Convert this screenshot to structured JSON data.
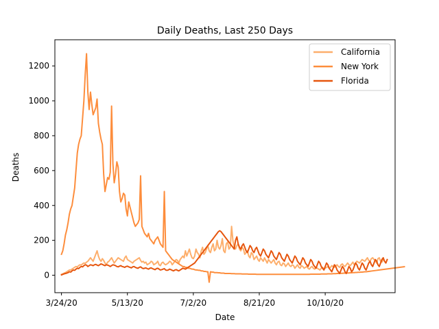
{
  "chart_data": {
    "type": "line",
    "title": "Daily Deaths, Last 250 Days",
    "xlabel": "Date",
    "ylabel": "Deaths",
    "x_start": "3/24/20",
    "x_end": "11/28/20",
    "xlim": [
      "3/19/20",
      "12/2/20"
    ],
    "ylim": [
      -100,
      1350
    ],
    "x_ticks": [
      "3/24/20",
      "5/13/20",
      "7/2/20",
      "8/21/20",
      "10/10/20"
    ],
    "y_ticks": [
      0,
      200,
      400,
      600,
      800,
      1000,
      1200
    ],
    "legend_position": "top-right",
    "grid": false,
    "series": [
      {
        "name": "California",
        "color": "#fdae6b",
        "values": [
          5,
          8,
          12,
          15,
          20,
          25,
          30,
          30,
          35,
          40,
          45,
          50,
          48,
          55,
          60,
          58,
          65,
          70,
          68,
          75,
          80,
          90,
          100,
          90,
          80,
          100,
          120,
          140,
          110,
          90,
          80,
          95,
          85,
          70,
          60,
          75,
          80,
          90,
          100,
          85,
          70,
          80,
          90,
          100,
          95,
          90,
          85,
          80,
          100,
          110,
          90,
          85,
          80,
          75,
          70,
          80,
          85,
          90,
          95,
          100,
          85,
          75,
          80,
          70,
          75,
          60,
          65,
          70,
          80,
          75,
          60,
          65,
          70,
          80,
          60,
          55,
          70,
          75,
          65,
          60,
          65,
          70,
          80,
          75,
          60,
          70,
          80,
          90,
          85,
          70,
          90,
          100,
          110,
          100,
          140,
          110,
          130,
          150,
          120,
          100,
          95,
          110,
          150,
          130,
          120,
          100,
          140,
          160,
          120,
          130,
          150,
          170,
          140,
          130,
          160,
          180,
          140,
          150,
          200,
          160,
          150,
          170,
          210,
          140,
          130,
          180,
          190,
          150,
          160,
          280,
          200,
          160,
          150,
          170,
          180,
          150,
          140,
          160,
          150,
          120,
          130,
          140,
          110,
          100,
          130,
          120,
          90,
          100,
          110,
          90,
          80,
          100,
          90,
          80,
          100,
          85,
          70,
          90,
          80,
          70,
          80,
          90,
          70,
          60,
          75,
          80,
          60,
          55,
          70,
          65,
          50,
          60,
          70,
          55,
          50,
          60,
          55,
          40,
          50,
          60,
          45,
          40,
          55,
          50,
          40,
          45,
          50,
          40,
          35,
          45,
          50,
          40,
          35,
          45,
          40,
          35,
          30,
          40,
          45,
          35,
          40,
          45,
          50,
          40,
          45,
          55,
          50,
          45,
          55,
          60,
          50,
          45,
          60,
          65,
          55,
          50,
          60,
          70,
          60,
          55,
          65,
          75,
          60,
          70,
          80,
          75,
          70,
          80,
          90,
          85,
          80,
          90,
          100,
          85,
          80,
          95,
          100,
          90,
          85,
          70,
          95,
          100,
          80,
          75,
          90
        ]
      },
      {
        "name": "New York",
        "color": "#fd8d3c",
        "values": [
          120,
          140,
          180,
          230,
          260,
          300,
          350,
          380,
          400,
          450,
          500,
          600,
          700,
          750,
          780,
          800,
          900,
          1000,
          1150,
          1270,
          1050,
          950,
          1050,
          980,
          920,
          940,
          960,
          1010,
          870,
          820,
          780,
          750,
          580,
          480,
          520,
          560,
          550,
          590,
          970,
          640,
          530,
          580,
          650,
          620,
          480,
          420,
          440,
          470,
          460,
          380,
          340,
          420,
          390,
          360,
          330,
          300,
          280,
          290,
          300,
          320,
          570,
          280,
          260,
          240,
          230,
          220,
          240,
          210,
          200,
          190,
          180,
          200,
          210,
          220,
          200,
          180,
          170,
          160,
          480,
          140,
          130,
          120,
          110,
          100,
          90,
          85,
          80,
          75,
          70,
          65,
          60,
          55,
          50,
          50,
          45,
          45,
          40,
          40,
          38,
          35,
          35,
          32,
          30,
          30,
          28,
          28,
          25,
          25,
          22,
          22,
          20,
          20,
          -40,
          20,
          18,
          18,
          15,
          15,
          15,
          14,
          14,
          12,
          12,
          12,
          10,
          10,
          10,
          10,
          10,
          9,
          9,
          9,
          8,
          8,
          8,
          8,
          8,
          7,
          7,
          7,
          7,
          7,
          6,
          6,
          6,
          6,
          6,
          6,
          5,
          5,
          5,
          5,
          5,
          5,
          5,
          5,
          5,
          5,
          5,
          5,
          5,
          5,
          5,
          5,
          5,
          5,
          5,
          5,
          5,
          5,
          5,
          5,
          5,
          5,
          5,
          5,
          5,
          5,
          5,
          5,
          5,
          5,
          5,
          5,
          5,
          5,
          5,
          5,
          5,
          6,
          6,
          6,
          6,
          6,
          6,
          6,
          6,
          7,
          7,
          7,
          7,
          7,
          8,
          8,
          8,
          8,
          9,
          9,
          9,
          10,
          10,
          10,
          11,
          11,
          12,
          12,
          12,
          13,
          13,
          14,
          14,
          15,
          15,
          16,
          16,
          17,
          17,
          18,
          18,
          19,
          20,
          20,
          21,
          22,
          23,
          24,
          25,
          26,
          27,
          28,
          29,
          30,
          31,
          32,
          33,
          34,
          35,
          36,
          37,
          38,
          39,
          40,
          41,
          42,
          43,
          44,
          45,
          46,
          47,
          48,
          49
        ]
      },
      {
        "name": "Florida",
        "color": "#e6550d",
        "values": [
          2,
          5,
          8,
          10,
          12,
          15,
          20,
          18,
          25,
          30,
          28,
          35,
          40,
          38,
          45,
          50,
          48,
          55,
          60,
          58,
          50,
          55,
          60,
          58,
          55,
          60,
          62,
          58,
          55,
          60,
          65,
          62,
          58,
          55,
          60,
          58,
          55,
          50,
          55,
          60,
          58,
          55,
          50,
          48,
          52,
          55,
          50,
          48,
          45,
          50,
          52,
          48,
          45,
          42,
          48,
          50,
          45,
          42,
          40,
          45,
          48,
          42,
          38,
          40,
          42,
          38,
          35,
          40,
          42,
          38,
          35,
          32,
          38,
          40,
          35,
          30,
          32,
          35,
          38,
          30,
          28,
          30,
          35,
          32,
          28,
          25,
          30,
          32,
          28,
          25,
          30,
          35,
          40,
          38,
          35,
          40,
          45,
          50,
          55,
          60,
          65,
          70,
          80,
          90,
          100,
          110,
          120,
          130,
          140,
          150,
          160,
          170,
          180,
          190,
          200,
          210,
          220,
          230,
          240,
          250,
          255,
          250,
          240,
          230,
          220,
          210,
          200,
          190,
          180,
          170,
          160,
          150,
          200,
          220,
          180,
          160,
          150,
          170,
          180,
          160,
          140,
          130,
          150,
          170,
          160,
          140,
          130,
          150,
          160,
          140,
          120,
          110,
          130,
          150,
          140,
          120,
          110,
          100,
          120,
          140,
          130,
          110,
          100,
          90,
          110,
          130,
          120,
          100,
          90,
          80,
          100,
          120,
          110,
          90,
          80,
          70,
          90,
          110,
          100,
          80,
          70,
          60,
          80,
          100,
          90,
          70,
          60,
          50,
          70,
          90,
          80,
          60,
          50,
          40,
          60,
          80,
          70,
          50,
          40,
          30,
          50,
          70,
          60,
          40,
          30,
          20,
          40,
          60,
          50,
          30,
          20,
          10,
          30,
          50,
          40,
          20,
          10,
          30,
          50,
          40,
          20,
          30,
          50,
          70,
          60,
          40,
          30,
          50,
          70,
          60,
          40,
          30,
          50,
          70,
          80,
          60,
          50,
          70,
          90,
          80,
          60,
          50,
          70,
          90,
          100,
          80,
          70,
          90
        ]
      }
    ]
  }
}
